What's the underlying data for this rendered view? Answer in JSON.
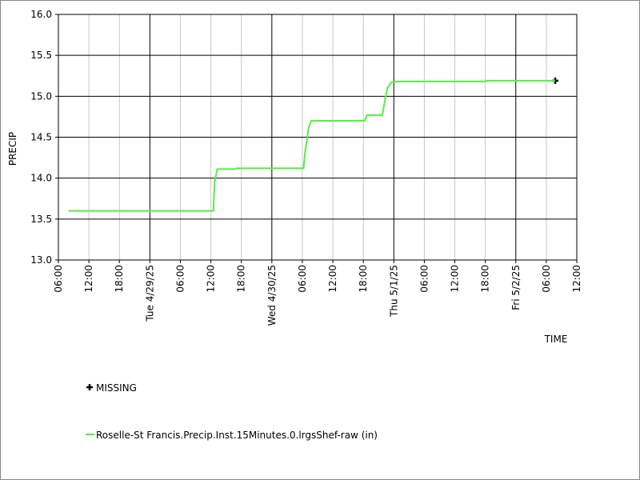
{
  "chart_data": {
    "type": "line",
    "ylabel": "PRECIP",
    "xlabel": "TIME",
    "xlim": [
      "2025-04-28T06:00",
      "2025-05-02T12:00"
    ],
    "xticks": [
      {
        "value": "2025-04-28T06:00",
        "label": "06:00"
      },
      {
        "value": "2025-04-28T12:00",
        "label": "12:00"
      },
      {
        "value": "2025-04-28T18:00",
        "label": "18:00"
      },
      {
        "value": "2025-04-29T00:00",
        "label": "Tue 4/29/25"
      },
      {
        "value": "2025-04-29T06:00",
        "label": "06:00"
      },
      {
        "value": "2025-04-29T12:00",
        "label": "12:00"
      },
      {
        "value": "2025-04-29T18:00",
        "label": "18:00"
      },
      {
        "value": "2025-04-30T00:00",
        "label": "Wed 4/30/25"
      },
      {
        "value": "2025-04-30T06:00",
        "label": "06:00"
      },
      {
        "value": "2025-04-30T12:00",
        "label": "12:00"
      },
      {
        "value": "2025-04-30T18:00",
        "label": "18:00"
      },
      {
        "value": "2025-05-01T00:00",
        "label": "Thu 5/1/25"
      },
      {
        "value": "2025-05-01T06:00",
        "label": "06:00"
      },
      {
        "value": "2025-05-01T12:00",
        "label": "12:00"
      },
      {
        "value": "2025-05-01T18:00",
        "label": "18:00"
      },
      {
        "value": "2025-05-02T00:00",
        "label": "Fri 5/2/25"
      },
      {
        "value": "2025-05-02T06:00",
        "label": "06:00"
      },
      {
        "value": "2025-05-02T12:00",
        "label": "12:00"
      }
    ],
    "ylim": [
      13.0,
      16.0
    ],
    "yticks": [
      {
        "value": 13.0,
        "label": "13.0"
      },
      13.5,
      {
        "value": 14.0,
        "label": "14.0"
      },
      14.5,
      {
        "value": 15.0,
        "label": "15.0"
      },
      15.5,
      {
        "value": 16.0,
        "label": "16.0"
      }
    ],
    "grid": true,
    "series": [
      {
        "name": "MISSING",
        "color": "#000000",
        "marker": "plus",
        "x": [
          "2025-05-02T07:45"
        ],
        "values": [
          15.19
        ]
      },
      {
        "name": "Roselle-St Francis.Precip.Inst.15Minutes.0.lrgsShef-raw (in)",
        "color": "#55ee44",
        "x": [
          "2025-04-28T08:00",
          "2025-04-29T12:30",
          "2025-04-29T12:45",
          "2025-04-29T13:15",
          "2025-04-29T16:45",
          "2025-04-29T17:00",
          "2025-04-30T06:15",
          "2025-04-30T06:30",
          "2025-04-30T06:45",
          "2025-04-30T07:15",
          "2025-04-30T07:45",
          "2025-04-30T18:15",
          "2025-04-30T18:45",
          "2025-04-30T21:45",
          "2025-04-30T22:15",
          "2025-04-30T22:45",
          "2025-04-30T23:30",
          "2025-05-01T01:00",
          "2025-05-01T18:00",
          "2025-05-01T18:15",
          "2025-05-02T07:45"
        ],
        "values": [
          13.6,
          13.6,
          13.95,
          14.11,
          14.11,
          14.12,
          14.12,
          14.3,
          14.4,
          14.62,
          14.7,
          14.7,
          14.77,
          14.77,
          14.95,
          15.1,
          15.17,
          15.18,
          15.18,
          15.19,
          15.19
        ]
      }
    ]
  }
}
